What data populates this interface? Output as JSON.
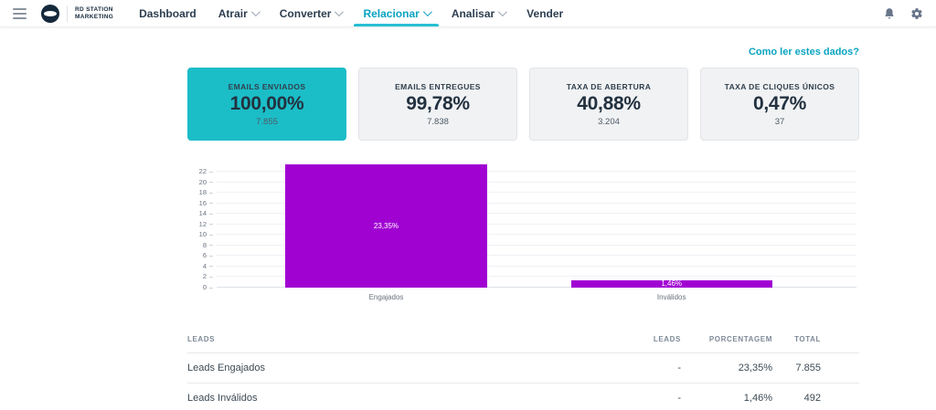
{
  "navbar": {
    "brand": {
      "line1": "RD STATION",
      "line2": "MARKETING"
    },
    "items": [
      {
        "label": "Dashboard"
      },
      {
        "label": "Atrair"
      },
      {
        "label": "Converter"
      },
      {
        "label": "Relacionar"
      },
      {
        "label": "Analisar"
      },
      {
        "label": "Vender"
      }
    ]
  },
  "help_link": "Como ler estes dados?",
  "metric_cards": [
    {
      "title": "EMAILS ENVIADOS",
      "value": "100,00%",
      "sub": "7.855"
    },
    {
      "title": "EMAILS ENTREGUES",
      "value": "99,78%",
      "sub": "7.838"
    },
    {
      "title": "TAXA DE ABERTURA",
      "value": "40,88%",
      "sub": "3.204"
    },
    {
      "title": "TAXA DE CLIQUES ÚNICOS",
      "value": "0,47%",
      "sub": "37"
    }
  ],
  "chart_data": {
    "type": "bar",
    "categories": [
      "Engajados",
      "Inválidos"
    ],
    "values": [
      23.35,
      1.46
    ],
    "labels": [
      "23,35%",
      "1,46%"
    ],
    "yticks": [
      0,
      2,
      4,
      6,
      8,
      10,
      12,
      14,
      16,
      18,
      20,
      22
    ],
    "ylim": [
      0,
      23.5
    ],
    "grid": true,
    "bar_color": "#a002d2",
    "title": "",
    "xlabel": "",
    "ylabel": ""
  },
  "table": {
    "headers": [
      "LEADS",
      "LEADS",
      "PORCENTAGEM",
      "TOTAL"
    ],
    "rows": [
      [
        "Leads Engajados",
        "-",
        "23,35%",
        "7.855"
      ],
      [
        "Leads Inválidos",
        "-",
        "1,46%",
        "492"
      ]
    ]
  },
  "colors": {
    "teal_card": "#1bbdc7",
    "teal_link": "#0aa4c0",
    "nav_active": "#0aa2c0",
    "bar_purple": "#a002d2",
    "navy_text": "#15293c"
  }
}
